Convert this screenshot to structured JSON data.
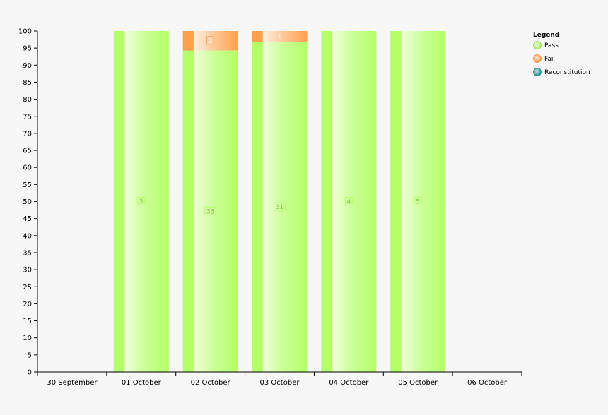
{
  "chart_data": {
    "type": "bar",
    "stacked": true,
    "categories": [
      "30 September",
      "01 October",
      "02 October",
      "03 October",
      "04 October",
      "05 October",
      "06 October"
    ],
    "ylim": [
      0,
      100
    ],
    "yticks": [
      0,
      5,
      10,
      15,
      20,
      25,
      30,
      35,
      40,
      45,
      50,
      55,
      60,
      65,
      70,
      75,
      80,
      85,
      90,
      95,
      100
    ],
    "series": [
      {
        "name": "Pass",
        "color": "#b3ff66",
        "values": [
          0,
          100,
          94.3,
          96.9,
          100,
          100,
          0
        ],
        "labels": [
          "",
          "3",
          "33",
          "31",
          "4",
          "5",
          ""
        ]
      },
      {
        "name": "Fail",
        "color": "#ffa04d",
        "values": [
          0,
          0,
          5.7,
          3.1,
          0,
          0,
          0
        ],
        "labels": [
          "",
          "",
          "2",
          "1",
          "",
          "",
          ""
        ]
      },
      {
        "name": "Reconstitution",
        "color": "#2a9b9b",
        "values": [
          0,
          0,
          0,
          0,
          0,
          0,
          0
        ],
        "labels": [
          "",
          "",
          "",
          "",
          "",
          "",
          ""
        ]
      }
    ],
    "legend": {
      "title": "Legend",
      "position": "top-right"
    },
    "grid": false
  }
}
